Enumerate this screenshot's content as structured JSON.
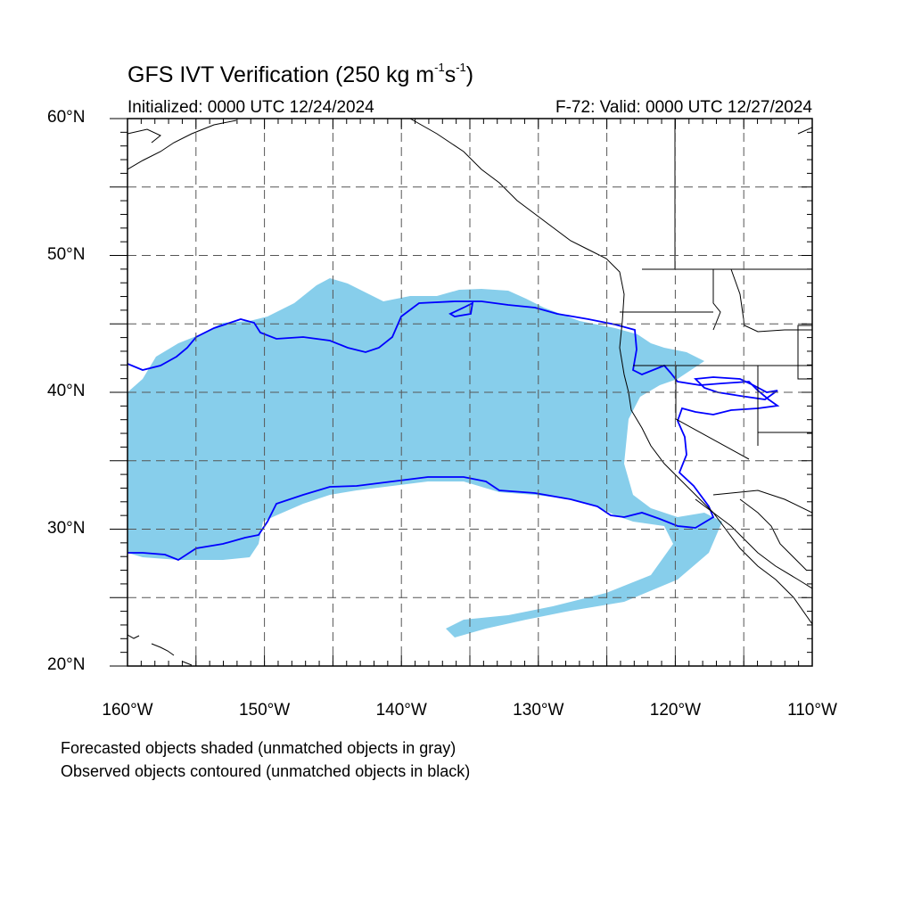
{
  "title": {
    "main": "GFS IVT Verification (250 kg m",
    "sup1": "-1",
    "mid": "s",
    "sup2": "-1",
    "end": ")"
  },
  "subtitle_left": "Initialized: 0000 UTC 12/24/2024",
  "subtitle_right": "F-72: Valid: 0000 UTC 12/27/2024",
  "lat_labels": [
    "60°N",
    "50°N",
    "40°N",
    "30°N",
    "20°N"
  ],
  "lon_labels": [
    "160°W",
    "150°W",
    "140°W",
    "130°W",
    "120°W",
    "110°W"
  ],
  "notes": {
    "line1": "Forecasted objects shaded (unmatched objects in gray)",
    "line2": "Observed objects contoured (unmatched objects in black)"
  },
  "map": {
    "lon_range": [
      -160,
      -110
    ],
    "lat_range": [
      20,
      60
    ],
    "grid_interval_deg": 5,
    "colors": {
      "forecast_fill": "#87ceeb",
      "observed_contour": "#0000ff",
      "coastline": "#000000",
      "grid": "#555555"
    }
  }
}
